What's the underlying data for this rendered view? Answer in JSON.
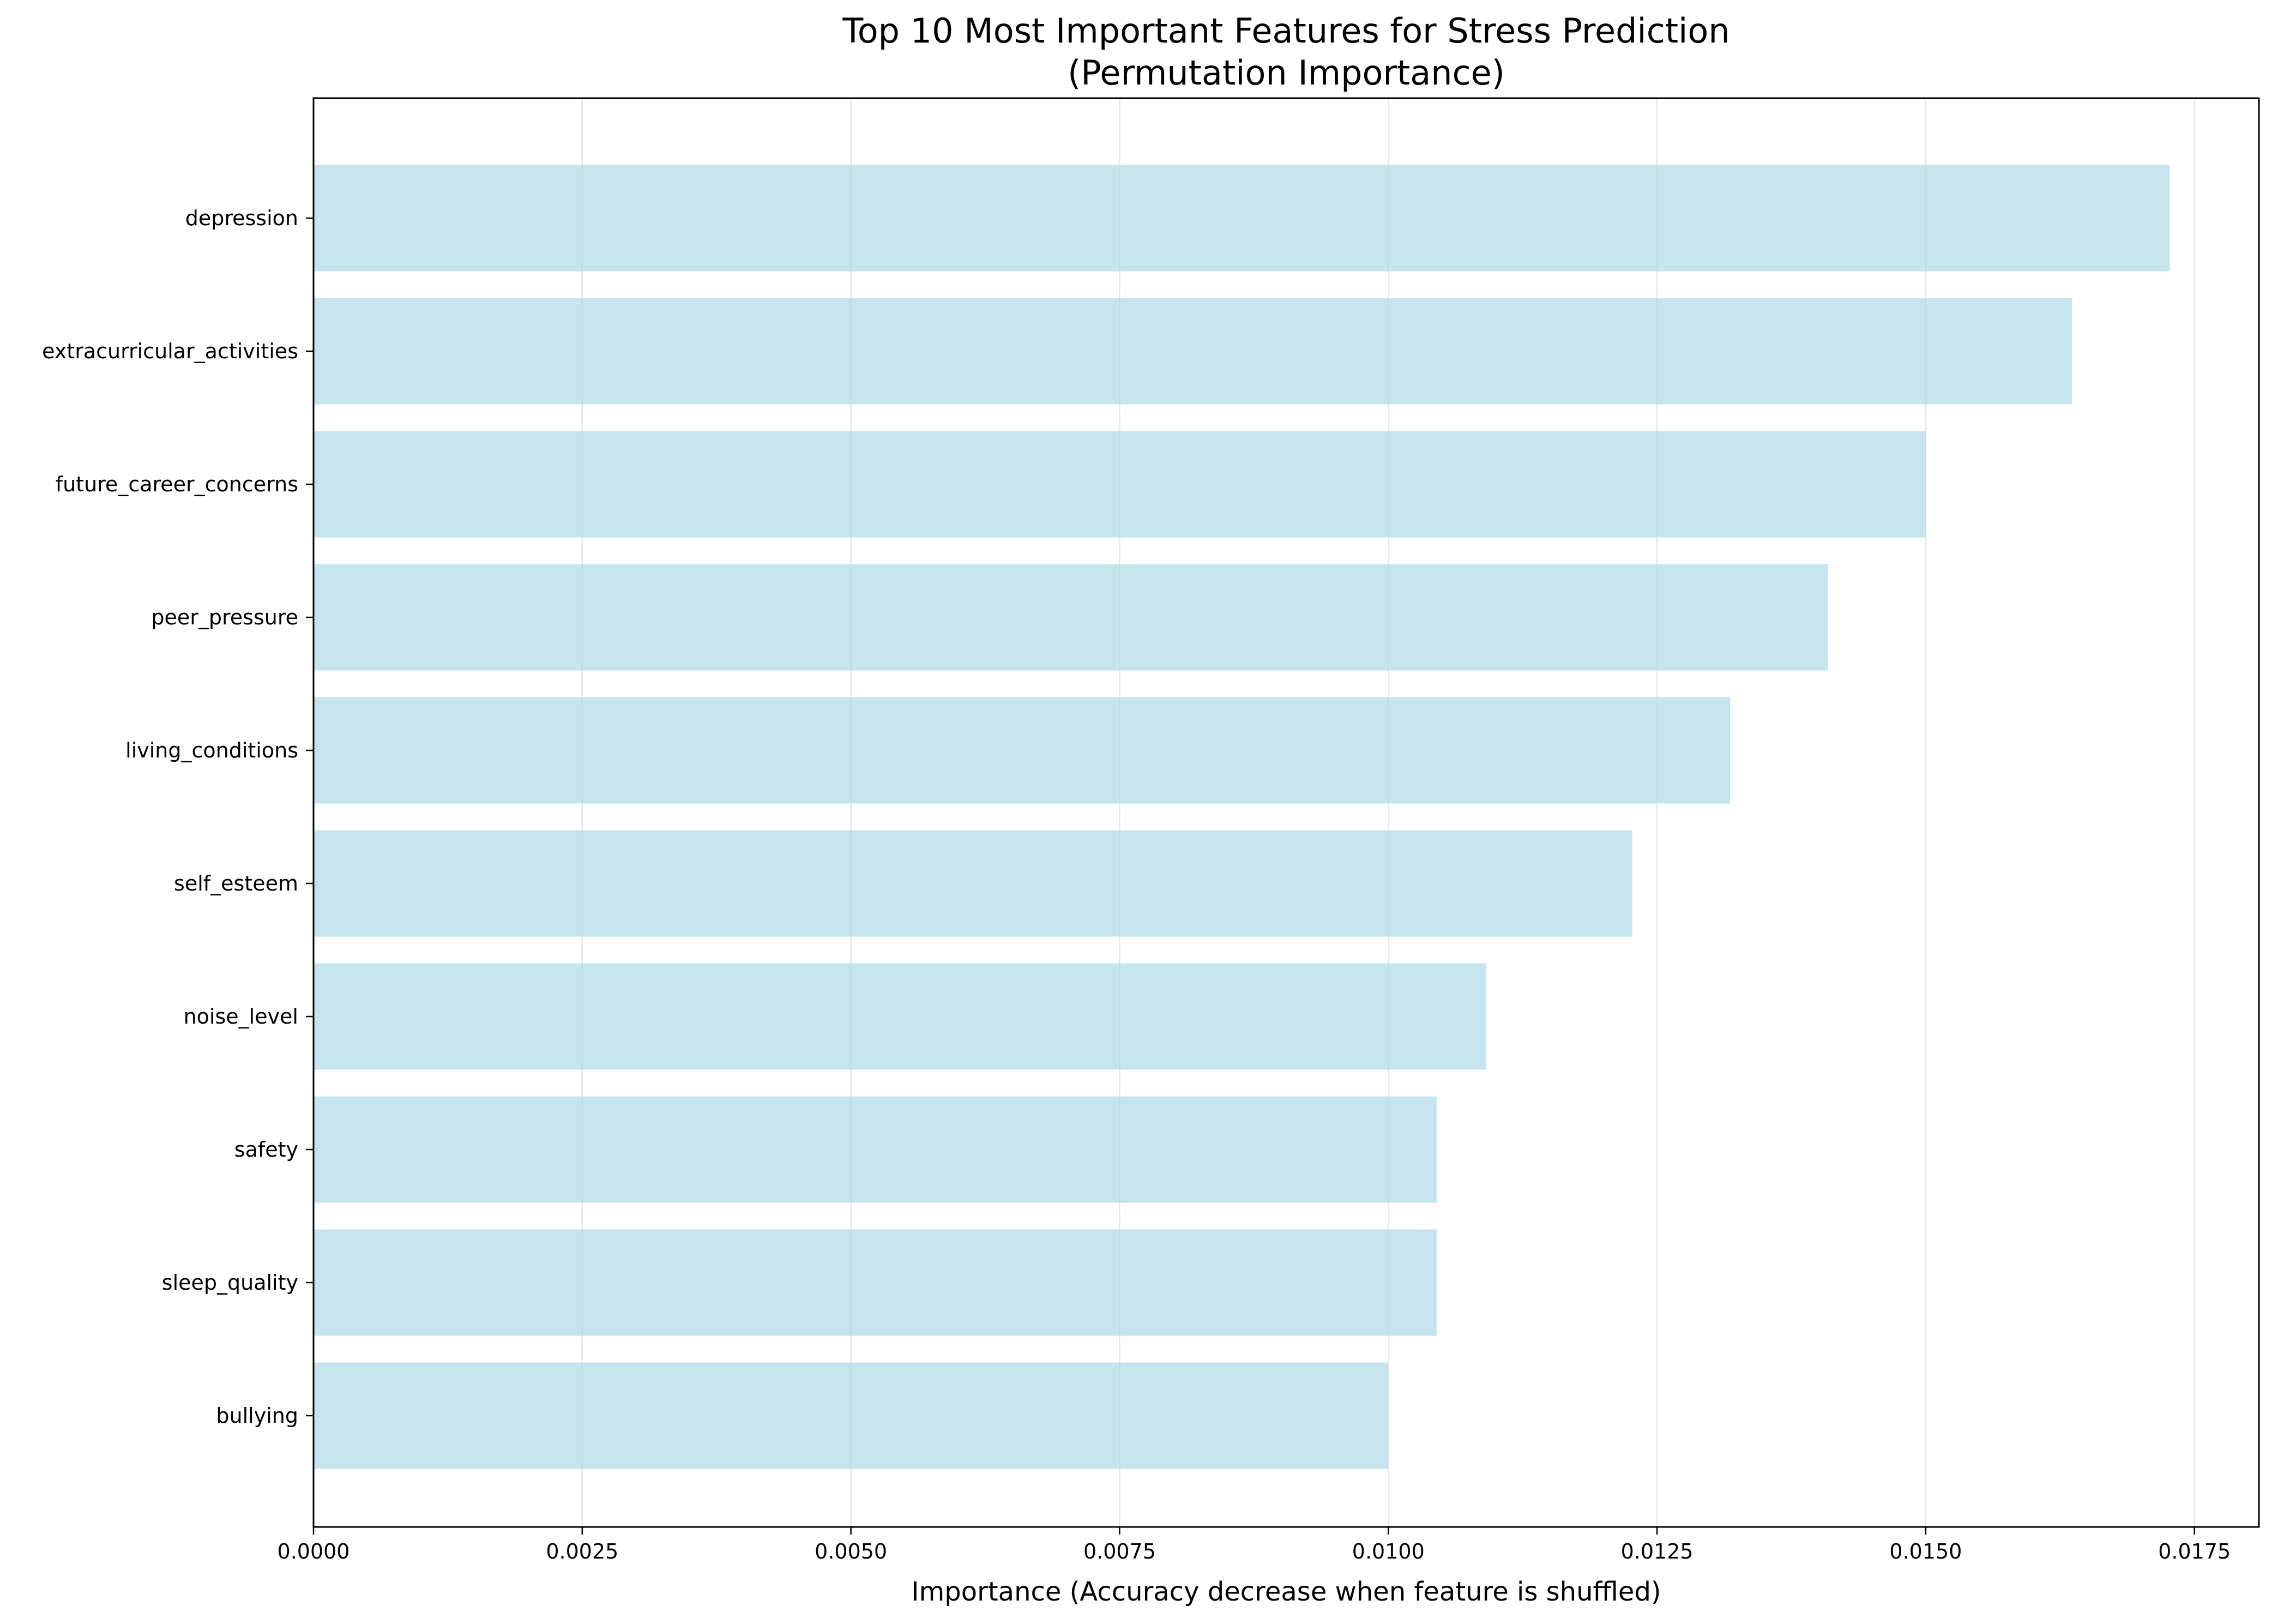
{
  "chart_data": {
    "type": "bar",
    "orientation": "horizontal",
    "title": "Top 10 Most Important Features for Stress Prediction",
    "subtitle": "(Permutation Importance)",
    "xlabel": "Importance (Accuracy decrease when feature is shuffled)",
    "ylabel": "",
    "categories": [
      "depression",
      "extracurricular_activities",
      "future_career_concerns",
      "peer_pressure",
      "living_conditions",
      "self_esteem",
      "noise_level",
      "safety",
      "sleep_quality",
      "bullying"
    ],
    "values": [
      0.01727,
      0.01636,
      0.015,
      0.01409,
      0.01318,
      0.01227,
      0.01091,
      0.01045,
      0.01045,
      0.01
    ],
    "xlim": [
      0,
      0.0181
    ],
    "xticks": [
      "0.0000",
      "0.0025",
      "0.0050",
      "0.0075",
      "0.0100",
      "0.0125",
      "0.0150",
      "0.0175"
    ],
    "grid": "vertical",
    "bar_color": "#add8e6",
    "bar_opacity": 0.7
  }
}
